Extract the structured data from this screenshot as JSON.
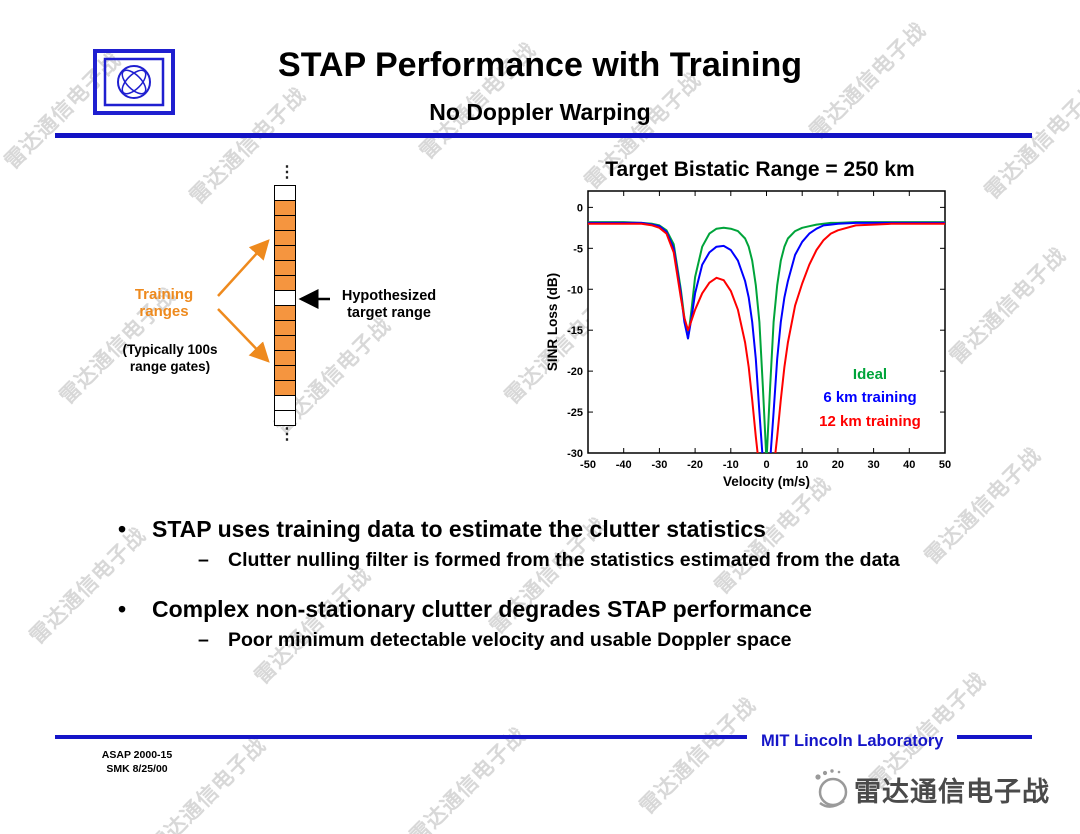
{
  "slide": {
    "title": "STAP Performance with Training",
    "subtitle": "No Doppler Warping"
  },
  "diagram": {
    "ellipsis": "⋮",
    "training_label": "Training\nranges",
    "gates_note": "(Typically 100s\nrange gates)",
    "target_label": "Hypothesized\ntarget range",
    "cells": [
      "w",
      "o",
      "o",
      "o",
      "o",
      "o",
      "o",
      "w",
      "o",
      "o",
      "o",
      "o",
      "o",
      "o",
      "w",
      "w"
    ]
  },
  "chart_data": {
    "type": "line",
    "title": "Target Bistatic Range = 250 km",
    "xlabel": "Velocity (m/s)",
    "ylabel": "SINR Loss (dB)",
    "xlim": [
      -50,
      50
    ],
    "ylim": [
      -30,
      2
    ],
    "x_ticks": [
      -50,
      -40,
      -30,
      -20,
      -10,
      0,
      10,
      20,
      30,
      40,
      50
    ],
    "y_ticks": [
      0,
      -5,
      -10,
      -15,
      -20,
      -25,
      -30
    ],
    "grid": false,
    "legend_position": "inside-right",
    "x": [
      -50,
      -45,
      -40,
      -35,
      -32,
      -30,
      -28,
      -26,
      -24,
      -23,
      -22,
      -21,
      -20,
      -18,
      -16,
      -14,
      -12,
      -10,
      -8,
      -6,
      -5,
      -4,
      -3,
      -2,
      -1,
      0,
      1,
      2,
      3,
      4,
      5,
      6,
      8,
      10,
      12,
      14,
      16,
      18,
      20,
      25,
      30,
      35,
      40,
      45,
      50
    ],
    "series": [
      {
        "label": "Ideal",
        "color": "#00A43A",
        "y": [
          -1.8,
          -1.8,
          -1.8,
          -1.9,
          -2.0,
          -2.2,
          -2.8,
          -4.5,
          -10,
          -13.5,
          -16,
          -12.5,
          -8.5,
          -4.8,
          -3.2,
          -2.6,
          -2.5,
          -2.6,
          -2.9,
          -3.8,
          -4.8,
          -6.5,
          -9.5,
          -14,
          -22,
          -31,
          -22,
          -14,
          -9.5,
          -6.5,
          -4.8,
          -3.8,
          -2.9,
          -2.5,
          -2.3,
          -2.1,
          -2.0,
          -1.9,
          -1.9,
          -1.8,
          -1.8,
          -1.8,
          -1.8,
          -1.8,
          -1.8
        ]
      },
      {
        "label": "6 km training",
        "color": "#0000FF",
        "y": [
          -1.9,
          -1.9,
          -1.9,
          -1.9,
          -2.1,
          -2.3,
          -3.0,
          -5.0,
          -10.5,
          -14,
          -16,
          -13.5,
          -10.5,
          -7.0,
          -5.5,
          -4.8,
          -4.7,
          -5.2,
          -6.5,
          -9.0,
          -11,
          -14,
          -18.5,
          -25,
          -31,
          -33,
          -31,
          -25,
          -18.5,
          -14,
          -11,
          -9.0,
          -5.8,
          -4.2,
          -3.2,
          -2.6,
          -2.2,
          -2.1,
          -2.0,
          -1.9,
          -1.9,
          -1.9,
          -1.9,
          -1.9,
          -1.9
        ]
      },
      {
        "label": "12 km training",
        "color": "#FF0000",
        "y": [
          -2.0,
          -2.0,
          -2.0,
          -2.0,
          -2.2,
          -2.5,
          -3.2,
          -5.5,
          -11,
          -13.5,
          -15,
          -13.8,
          -12.5,
          -10.5,
          -9.2,
          -8.6,
          -8.9,
          -10.2,
          -12.5,
          -16.5,
          -19.5,
          -23.5,
          -28,
          -32,
          -34,
          -35,
          -34,
          -32,
          -28,
          -23.5,
          -19.5,
          -16.5,
          -12,
          -9.3,
          -7.0,
          -5.2,
          -4.0,
          -3.2,
          -2.8,
          -2.2,
          -2.1,
          -2.0,
          -2.0,
          -2.0,
          -2.0
        ]
      }
    ]
  },
  "markers": {
    "bullet": "•",
    "dash": "–"
  },
  "bullets": [
    {
      "text": "STAP uses training data to estimate the clutter statistics",
      "sub": [
        "Clutter nulling filter is formed from the statistics estimated from the data"
      ]
    },
    {
      "text": "Complex non-stationary clutter degrades STAP performance",
      "sub": [
        "Poor minimum detectable velocity and usable Doppler space"
      ]
    }
  ],
  "footer": {
    "credit": "ASAP 2000-15\nSMK 8/25/00",
    "org": "MIT Lincoln Laboratory"
  },
  "watermark": {
    "text": "雷达通信电子战"
  },
  "brand": {
    "text": "雷达通信电子战"
  }
}
